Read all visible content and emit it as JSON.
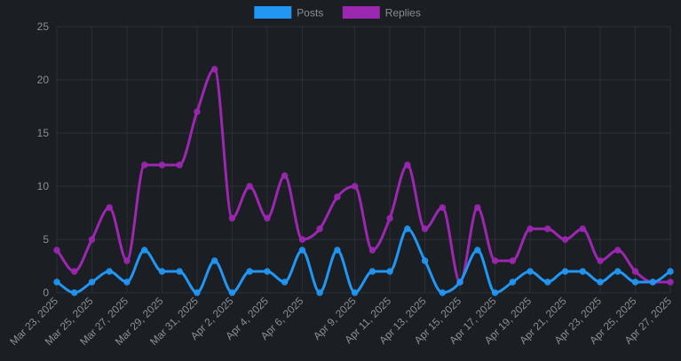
{
  "chart_data": {
    "type": "line",
    "title": "",
    "xlabel": "",
    "ylabel": "",
    "ylim": [
      0,
      25
    ],
    "y_ticks": [
      0,
      5,
      10,
      15,
      20,
      25
    ],
    "grid": true,
    "legend_position": "top-center",
    "categories": [
      "Mar 23, 2025",
      "Mar 24, 2025",
      "Mar 25, 2025",
      "Mar 26, 2025",
      "Mar 27, 2025",
      "Mar 28, 2025",
      "Mar 29, 2025",
      "Mar 30, 2025",
      "Mar 31, 2025",
      "Apr 1, 2025",
      "Apr 2, 2025",
      "Apr 3, 2025",
      "Apr 4, 2025",
      "Apr 5, 2025",
      "Apr 6, 2025",
      "Apr 7, 2025",
      "Apr 8, 2025",
      "Apr 9, 2025",
      "Apr 10, 2025",
      "Apr 11, 2025",
      "Apr 12, 2025",
      "Apr 13, 2025",
      "Apr 14, 2025",
      "Apr 15, 2025",
      "Apr 16, 2025",
      "Apr 17, 2025",
      "Apr 18, 2025",
      "Apr 19, 2025",
      "Apr 20, 2025",
      "Apr 21, 2025",
      "Apr 22, 2025",
      "Apr 23, 2025",
      "Apr 24, 2025",
      "Apr 25, 2025",
      "Apr 26, 2025",
      "Apr 27, 2025"
    ],
    "x_tick_labels": [
      "Mar 23, 2025",
      "Mar 25, 2025",
      "Mar 27, 2025",
      "Mar 29, 2025",
      "Mar 31, 2025",
      "Apr 2, 2025",
      "Apr 4, 2025",
      "Apr 6, 2025",
      "Apr 9, 2025",
      "Apr 11, 2025",
      "Apr 13, 2025",
      "Apr 15, 2025",
      "Apr 17, 2025",
      "Apr 19, 2025",
      "Apr 21, 2025",
      "Apr 23, 2025",
      "Apr 25, 2025",
      "Apr 27, 2025"
    ],
    "series": [
      {
        "name": "Posts",
        "color": "#2196f3",
        "values": [
          1,
          0,
          1,
          2,
          1,
          4,
          2,
          2,
          0,
          3,
          0,
          2,
          2,
          1,
          4,
          0,
          4,
          0,
          2,
          2,
          6,
          3,
          0,
          1,
          4,
          0,
          1,
          2,
          1,
          2,
          2,
          1,
          2,
          1,
          1,
          2
        ]
      },
      {
        "name": "Replies",
        "color": "#9c27b0",
        "values": [
          4,
          2,
          5,
          8,
          3,
          12,
          12,
          12,
          17,
          21,
          7,
          10,
          7,
          11,
          5,
          6,
          9,
          10,
          4,
          7,
          12,
          6,
          8,
          1,
          8,
          3,
          3,
          6,
          6,
          5,
          6,
          3,
          4,
          2,
          1,
          1
        ]
      }
    ]
  }
}
